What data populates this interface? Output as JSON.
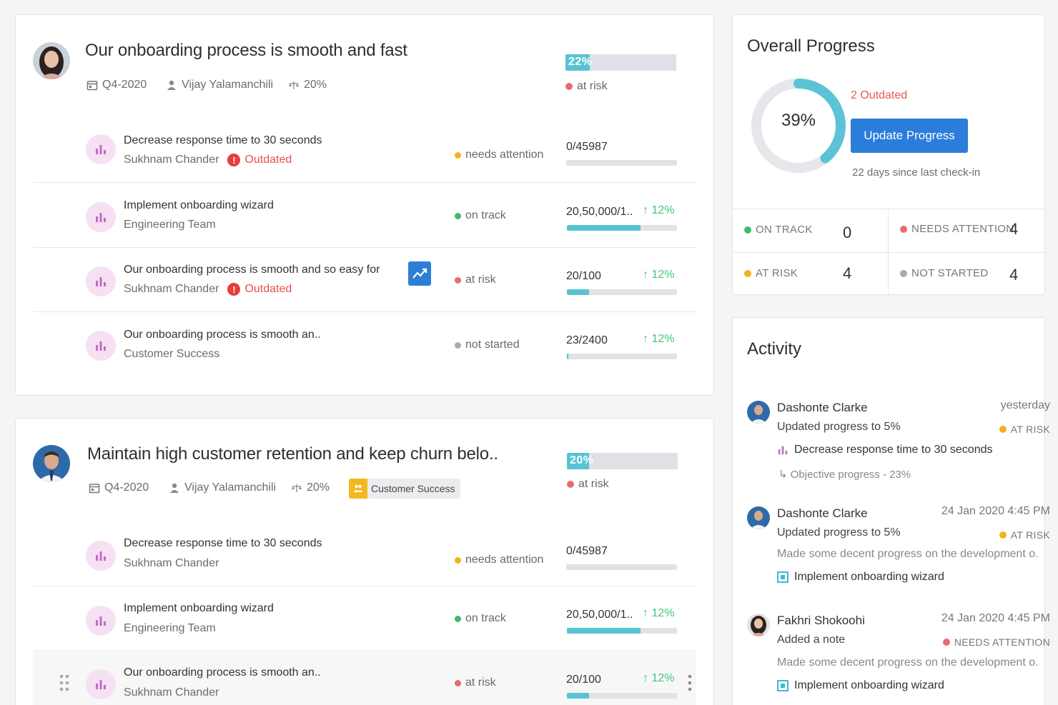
{
  "colors": {
    "accent": "#58c4d3",
    "primary_button": "#2a7ddb",
    "at_risk": "#e96b6b",
    "needs_attention": "#f4b01d",
    "on_track": "#3dbb6a",
    "not_started": "#a9aab1",
    "outdated": "#ea4f4f",
    "positive_delta": "#43c47b",
    "kr_icon_bg": "#f5e1f3",
    "kr_icon_bars": "#c06cc8"
  },
  "objectives": [
    {
      "title": "Our onboarding process is smooth and fast",
      "quarter": "Q4-2020",
      "owner": "Vijay Yalamanchili",
      "weight": "20%",
      "progress_label": "22%",
      "progress_value": 22,
      "status": "at risk",
      "key_results": [
        {
          "title": "Decrease response time to 30 seconds",
          "owner": "Sukhnam Chander",
          "outdated": "Outdated",
          "status": "needs attention",
          "value": "0/45987",
          "delta": "",
          "progress": 0
        },
        {
          "title": "Implement onboarding wizard",
          "owner": "Engineering Team",
          "outdated": "",
          "status": "on track",
          "value": "20,50,000/1..",
          "delta": "↑ 12%",
          "progress": 67
        },
        {
          "title": "Our onboarding process is smooth and so easy for",
          "owner": "Sukhnam Chander",
          "outdated": "Outdated",
          "status": "at risk",
          "value": "20/100",
          "delta": "↑ 12%",
          "progress": 20
        },
        {
          "title": "Our onboarding process is smooth an..",
          "owner": "Customer Success",
          "outdated": "",
          "status": "not started",
          "value": "23/2400",
          "delta": "↑ 12%",
          "progress": 1
        }
      ]
    },
    {
      "title": "Maintain high customer retention and keep churn belo..",
      "quarter": "Q4-2020",
      "owner": "Vijay Yalamanchili",
      "weight": "20%",
      "tag": "Customer Success",
      "progress_label": "20%",
      "progress_value": 20,
      "status": "at risk",
      "key_results": [
        {
          "title": "Decrease response time to 30 seconds",
          "owner": "Sukhnam Chander",
          "status": "needs attention",
          "value": "0/45987",
          "delta": "",
          "progress": 0
        },
        {
          "title": "Implement onboarding wizard",
          "owner": "Engineering Team",
          "status": "on track",
          "value": "20,50,000/1..",
          "delta": "↑ 12%",
          "progress": 67
        },
        {
          "title": "Our onboarding process is smooth an..",
          "owner": "Sukhnam Chander",
          "status": "at risk",
          "value": "20/100",
          "delta": "↑ 12%",
          "progress": 20
        }
      ]
    }
  ],
  "overall": {
    "title": "Overall Progress",
    "percent_label": "39%",
    "percent": 39,
    "outdated": "2 Outdated",
    "button": "Update Progress",
    "since": "22 days since last check-in",
    "counts": [
      {
        "label": "ON TRACK",
        "value": "0",
        "color": "#3dbb6a"
      },
      {
        "label": "NEEDS ATTENTION",
        "value": "4",
        "color": "#e96b6b"
      },
      {
        "label": "AT RISK",
        "value": "4",
        "color": "#f4b01d"
      },
      {
        "label": "NOT STARTED",
        "value": "4",
        "color": "#a9aab1"
      }
    ]
  },
  "activity": {
    "title": "Activity",
    "items": [
      {
        "name": "Dashonte Clarke",
        "time": "yesterday",
        "action": "Updated progress to 5%",
        "badge": "AT RISK",
        "line3": "Decrease response time to 30 seconds",
        "line4": "↳ Objective progress - 23%"
      },
      {
        "name": "Dashonte Clarke",
        "time": "24 Jan 2020 4:45 PM",
        "action": "Updated progress to 5%",
        "badge": "AT RISK",
        "line3": "Made some decent progress on the development o.",
        "line4": "Implement onboarding wizard"
      },
      {
        "name": "Fakhri Shokoohi",
        "time": "24 Jan 2020 4:45 PM",
        "action": "Added a note",
        "badge": "NEEDS ATTENTION",
        "line3": "Made some decent progress on the development o.",
        "line4": "Implement onboarding wizard"
      }
    ]
  }
}
